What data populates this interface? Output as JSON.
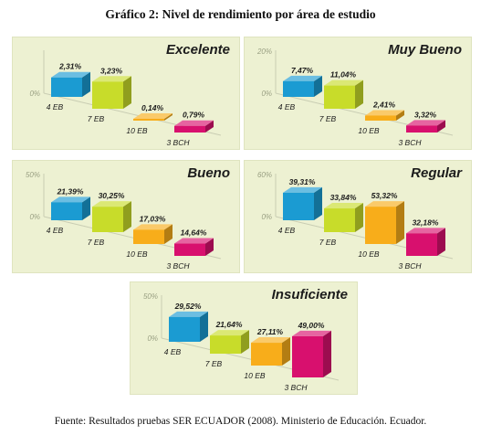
{
  "title": "Gráfico 2: Nivel de rendimiento por área de estudio",
  "source": "Fuente: Resultados pruebas SER ECUADOR (2008). Ministerio de Educación. Ecuador.",
  "colors": {
    "4 EB": "#1b9bd2",
    "7 EB": "#c8dc2a",
    "10 EB": "#f8ad1a",
    "3 BCH": "#d8106e",
    "panel_bg": "#edf1d2",
    "axis": "#c9cdb3"
  },
  "chart_data": [
    {
      "type": "bar",
      "title": "Excelente",
      "categories": [
        "4 EB",
        "7 EB",
        "10 EB",
        "3 BCH"
      ],
      "values": [
        2.31,
        3.23,
        0.14,
        0.79
      ],
      "value_labels": [
        "2,31%",
        "3,23%",
        "0,14%",
        "0,79%"
      ],
      "ylim": [
        0,
        5
      ],
      "yticks": [
        "0%",
        ""
      ],
      "grid": false
    },
    {
      "type": "bar",
      "title": "Muy Bueno",
      "categories": [
        "4 EB",
        "7 EB",
        "10 EB",
        "3 BCH"
      ],
      "values": [
        7.47,
        11.04,
        2.41,
        3.32
      ],
      "value_labels": [
        "7,47%",
        "11,04%",
        "2,41%",
        "3,32%"
      ],
      "ylim": [
        0,
        20
      ],
      "yticks": [
        "0%",
        "20%"
      ],
      "grid": false
    },
    {
      "type": "bar",
      "title": "Bueno",
      "categories": [
        "4 EB",
        "7 EB",
        "10 EB",
        "3 BCH"
      ],
      "values": [
        21.39,
        30.25,
        17.03,
        14.64
      ],
      "value_labels": [
        "21,39%",
        "30,25%",
        "17,03%",
        "14,64%"
      ],
      "ylim": [
        0,
        50
      ],
      "yticks": [
        "0%",
        "50%"
      ],
      "grid": false
    },
    {
      "type": "bar",
      "title": "Regular",
      "categories": [
        "4 EB",
        "7 EB",
        "10 EB",
        "3 BCH"
      ],
      "values": [
        39.31,
        33.84,
        53.32,
        32.18
      ],
      "value_labels": [
        "39,31%",
        "33,84%",
        "53,32%",
        "32,18%"
      ],
      "ylim": [
        0,
        60
      ],
      "yticks": [
        "0%",
        "60%"
      ],
      "grid": false
    },
    {
      "type": "bar",
      "title": "Insuficiente",
      "categories": [
        "4 EB",
        "7 EB",
        "10 EB",
        "3 BCH"
      ],
      "values": [
        29.52,
        21.64,
        27.11,
        49.0
      ],
      "value_labels": [
        "29,52%",
        "21,64%",
        "27,11%",
        "49,00%"
      ],
      "ylim": [
        0,
        50
      ],
      "yticks": [
        "0%",
        "50%"
      ],
      "grid": false
    }
  ]
}
